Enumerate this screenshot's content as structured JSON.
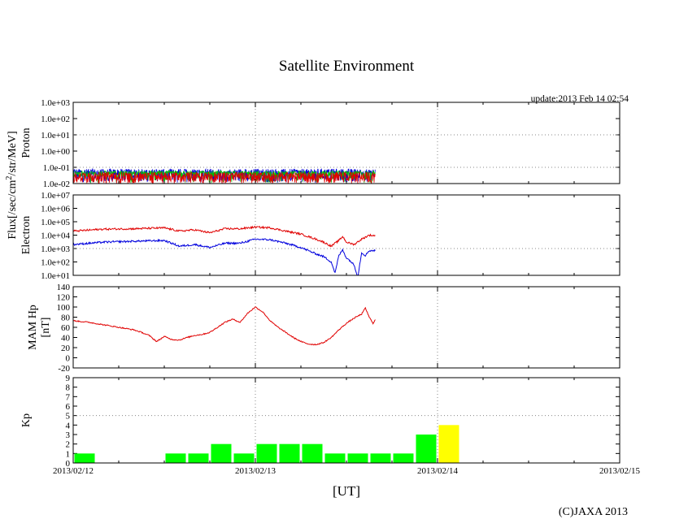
{
  "title": "Satellite Environment",
  "update": "update:2013 Feb 14 02:54",
  "copyright": "(C)JAXA 2013",
  "flux_label": "Flux[/sec/cm",
  "flux_label_sup": "2",
  "flux_label_tail": "/str/MeV]",
  "colors": {
    "proton_red": "#e00000",
    "proton_green": "#00c000",
    "proton_blue": "#0000dd",
    "electron_red": "#e00000",
    "electron_blue": "#0000dd",
    "hp_line": "#e00000",
    "kp_green": "#00ff00",
    "kp_yellow": "#ffff00",
    "grid": "#888888"
  },
  "chart_data": [
    {
      "type": "line",
      "name": "proton",
      "ylabel": "Proton",
      "yscale": "log",
      "ylim": [
        0.01,
        1000
      ],
      "yticks": [
        "1.0e-02",
        "1.0e-01",
        "1.0e+00",
        "1.0e+01",
        "1.0e+02",
        "1.0e+03"
      ],
      "xlim_hours": [
        0,
        72
      ],
      "data_end_hours": 39.8,
      "series": [
        {
          "name": "proton-high",
          "color_key": "proton_blue",
          "baseline": 0.045,
          "spread": [
            0.012,
            0.08
          ]
        },
        {
          "name": "proton-mid",
          "color_key": "proton_green",
          "baseline": 0.04,
          "spread": [
            0.025,
            0.06
          ]
        },
        {
          "name": "proton-low",
          "color_key": "proton_red",
          "baseline": 0.03,
          "spread": [
            0.01,
            0.05
          ]
        }
      ]
    },
    {
      "type": "line",
      "name": "electron",
      "ylabel": "Electron",
      "yscale": "log",
      "ylim": [
        10,
        10000000
      ],
      "yticks": [
        "1.0e+01",
        "1.0e+02",
        "1.0e+03",
        "1.0e+04",
        "1.0e+05",
        "1.0e+06",
        "1.0e+07"
      ],
      "xlim_hours": [
        0,
        72
      ],
      "series": [
        {
          "name": "electron-high-energy",
          "color_key": "electron_red",
          "x": [
            0,
            4,
            8,
            12,
            14,
            16,
            18,
            20,
            22,
            24,
            26,
            28,
            30,
            32,
            33,
            34,
            35,
            35.5,
            36,
            37,
            38,
            39,
            39.8
          ],
          "y": [
            20000,
            28000,
            30000,
            35000,
            20000,
            25000,
            15000,
            30000,
            30000,
            40000,
            35000,
            20000,
            12000,
            5000,
            3000,
            1500,
            4000,
            8000,
            3000,
            2000,
            5000,
            10000,
            9000
          ]
        },
        {
          "name": "electron-low-energy",
          "color_key": "electron_blue",
          "x": [
            0,
            4,
            8,
            12,
            14,
            16,
            18,
            20,
            22,
            24,
            26,
            28,
            30,
            32,
            33,
            34,
            34.5,
            35,
            35.5,
            36,
            36.5,
            37,
            37.5,
            38,
            38.5,
            39,
            39.8
          ],
          "y": [
            2000,
            3000,
            3500,
            4000,
            1500,
            2000,
            1200,
            2500,
            2500,
            5000,
            4500,
            2500,
            1200,
            400,
            250,
            100,
            15,
            300,
            800,
            200,
            120,
            60,
            8,
            500,
            300,
            700,
            700
          ]
        }
      ]
    },
    {
      "type": "line",
      "name": "mam-hp",
      "ylabel": "MAM Hp",
      "ylabel2": "[nT]",
      "ylim": [
        -20,
        140
      ],
      "yticks": [
        "-20",
        "0",
        "20",
        "40",
        "60",
        "80",
        "100",
        "120",
        "140"
      ],
      "xlim_hours": [
        0,
        72
      ],
      "series": [
        {
          "name": "hp",
          "color_key": "hp_line",
          "x": [
            0,
            2,
            4,
            6,
            8,
            9,
            10,
            11,
            12,
            13,
            14,
            15,
            16,
            17,
            18,
            19,
            20,
            21,
            22,
            23,
            24,
            25,
            26,
            27,
            28,
            29,
            30,
            31,
            32,
            33,
            34,
            35,
            36,
            37,
            38,
            38.5,
            39,
            39.5,
            39.8
          ],
          "y": [
            73,
            70,
            65,
            60,
            55,
            50,
            44,
            32,
            42,
            36,
            35,
            40,
            44,
            46,
            50,
            60,
            70,
            76,
            70,
            88,
            100,
            90,
            72,
            60,
            50,
            40,
            32,
            27,
            26,
            30,
            40,
            55,
            68,
            78,
            86,
            98,
            80,
            68,
            75
          ]
        }
      ]
    },
    {
      "type": "bar",
      "name": "kp",
      "ylabel": "Kp",
      "ylim": [
        0,
        9
      ],
      "yticks": [
        "0",
        "1",
        "2",
        "3",
        "4",
        "5",
        "6",
        "7",
        "8",
        "9"
      ],
      "xlim_hours": [
        0,
        72
      ],
      "bin_hours": 3,
      "values": [
        1,
        0,
        0,
        0,
        1,
        1,
        2,
        1,
        2,
        2,
        2,
        1,
        1,
        1,
        1,
        3,
        4
      ],
      "bar_colors": [
        "green",
        "green",
        "green",
        "green",
        "green",
        "green",
        "green",
        "green",
        "green",
        "green",
        "green",
        "green",
        "green",
        "green",
        "green",
        "green",
        "yellow"
      ]
    }
  ],
  "x_axis": {
    "label": "[UT]",
    "ticks": [
      "2013/02/12",
      "2013/02/13",
      "2013/02/14",
      "2013/02/15"
    ]
  }
}
